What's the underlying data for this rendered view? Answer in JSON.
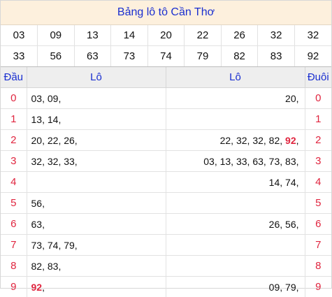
{
  "title": "Bảng lô tô Cần Thơ",
  "numbers": {
    "row1": [
      "03",
      "09",
      "13",
      "14",
      "20",
      "22",
      "26",
      "32",
      "32"
    ],
    "row2": [
      "33",
      "56",
      "63",
      "73",
      "74",
      "79",
      "82",
      "83",
      "92"
    ]
  },
  "headers": {
    "dau": "Đầu",
    "lo_left": "Lô",
    "lo_right": "Lô",
    "duoi": "Đuôi"
  },
  "rows": [
    {
      "digit": "0",
      "left": [
        "03",
        "09"
      ],
      "right": [
        "20"
      ]
    },
    {
      "digit": "1",
      "left": [
        "13",
        "14"
      ],
      "right": []
    },
    {
      "digit": "2",
      "left": [
        "20",
        "22",
        "26"
      ],
      "right": [
        "22",
        "32",
        "32",
        "82",
        "92"
      ]
    },
    {
      "digit": "3",
      "left": [
        "32",
        "32",
        "33"
      ],
      "right": [
        "03",
        "13",
        "33",
        "63",
        "73",
        "83"
      ]
    },
    {
      "digit": "4",
      "left": [],
      "right": [
        "14",
        "74"
      ]
    },
    {
      "digit": "5",
      "left": [
        "56"
      ],
      "right": []
    },
    {
      "digit": "6",
      "left": [
        "63"
      ],
      "right": [
        "26",
        "56"
      ]
    },
    {
      "digit": "7",
      "left": [
        "73",
        "74",
        "79"
      ],
      "right": []
    },
    {
      "digit": "8",
      "left": [
        "82",
        "83"
      ],
      "right": []
    },
    {
      "digit": "9",
      "left": [
        "92"
      ],
      "right": [
        "09",
        "79"
      ]
    }
  ],
  "special": "92",
  "colors": {
    "title": "#1a2fd0",
    "highlight": "#e0253f",
    "title_bg": "#fdf0dd",
    "header_bg": "#eeeeee"
  }
}
